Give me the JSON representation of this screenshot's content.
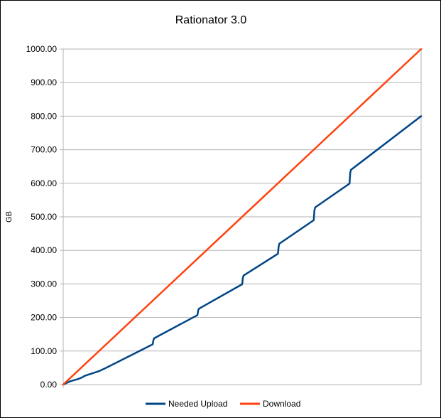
{
  "chart_data": {
    "type": "line",
    "title": "Rationator 3.0",
    "xlabel": "",
    "ylabel": "GB",
    "ylim": [
      0,
      1000
    ],
    "yticks": [
      "0.00",
      "100.00",
      "200.00",
      "300.00",
      "400.00",
      "500.00",
      "600.00",
      "700.00",
      "800.00",
      "900.00",
      "1000.00"
    ],
    "xlim": [
      0,
      1000
    ],
    "grid": true,
    "legend": "bottom",
    "series": [
      {
        "name": "Needed Upload",
        "color": "#004586",
        "points": [
          [
            0,
            0
          ],
          [
            20,
            10
          ],
          [
            40,
            16
          ],
          [
            50,
            20
          ],
          [
            60,
            26
          ],
          [
            100,
            40
          ],
          [
            110,
            45
          ],
          [
            120,
            50
          ],
          [
            250,
            120
          ],
          [
            252,
            132
          ],
          [
            254,
            138
          ],
          [
            375,
            207
          ],
          [
            377,
            220
          ],
          [
            379,
            226
          ],
          [
            500,
            299
          ],
          [
            502,
            318
          ],
          [
            504,
            325
          ],
          [
            600,
            390
          ],
          [
            602,
            412
          ],
          [
            604,
            420
          ],
          [
            700,
            490
          ],
          [
            702,
            520
          ],
          [
            704,
            528
          ],
          [
            800,
            599
          ],
          [
            802,
            632
          ],
          [
            804,
            640
          ],
          [
            1000,
            800
          ]
        ]
      },
      {
        "name": "Download",
        "color": "#ff420e",
        "points": [
          [
            0,
            0
          ],
          [
            1000,
            1000
          ]
        ]
      }
    ]
  }
}
